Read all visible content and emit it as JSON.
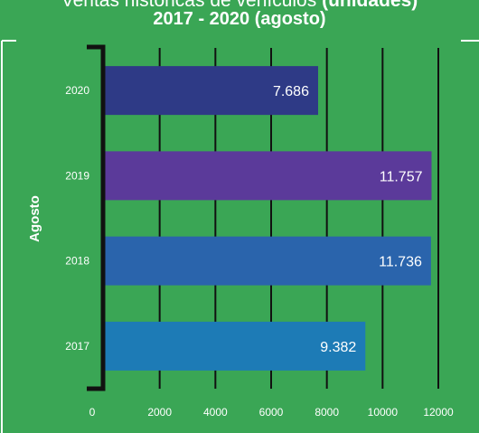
{
  "title": {
    "line1_prefix": "Ventas históricas de vehículos ",
    "line1_bold": "(unidades)",
    "line2": "2017 - 2020 (agosto)"
  },
  "chart_data": {
    "type": "bar",
    "orientation": "horizontal",
    "ylabel": "Agosto",
    "categories": [
      "2020",
      "2019",
      "2018",
      "2017"
    ],
    "values": [
      7686,
      11757,
      11736,
      9382
    ],
    "value_labels": [
      "7.686",
      "11.757",
      "11.736",
      "9.382"
    ],
    "bar_colors": [
      "#2e3a86",
      "#5b3a9a",
      "#2a64ac",
      "#1d7bb6"
    ],
    "xticks": [
      0,
      2000,
      4000,
      6000,
      8000,
      10000,
      12000
    ],
    "xlim": [
      0,
      12000
    ],
    "grid": true,
    "background": "#3aa655",
    "text_color": "#ffffff"
  }
}
